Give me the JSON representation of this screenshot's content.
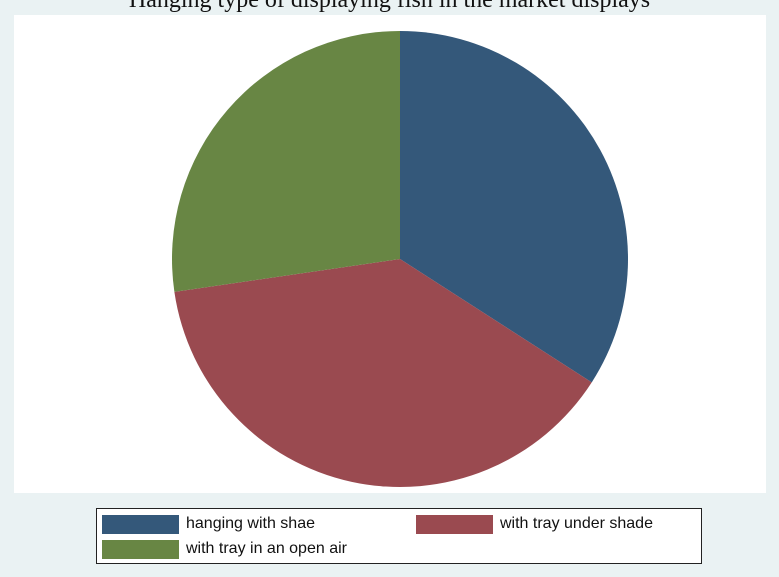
{
  "title": "Hanging type of displaying fish in the market displays",
  "chart_data": {
    "type": "pie",
    "title": "Hanging type of displaying fish in the market displays",
    "legend_position": "bottom",
    "series": [
      {
        "name": "hanging with shae",
        "value": 34.1,
        "color": "#34587a"
      },
      {
        "name": "with tray under shade",
        "value": 38.6,
        "color": "#9a4a50"
      },
      {
        "name": "with tray in an open air",
        "value": 27.3,
        "color": "#688644"
      }
    ]
  }
}
